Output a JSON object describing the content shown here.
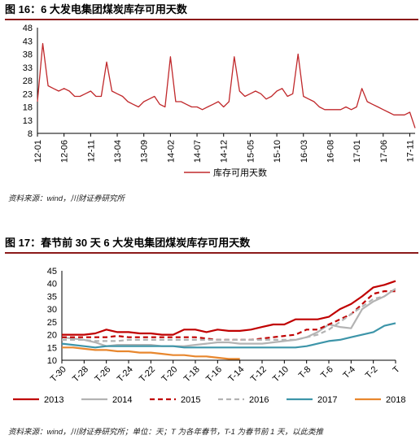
{
  "fig1": {
    "title": "图 16：6 大发电集团煤炭库存可用天数",
    "source": "资料来源：wind，川财证券研究所",
    "chart_data": {
      "type": "line",
      "title": "",
      "xlabel": "",
      "ylabel": "",
      "ylim": [
        8,
        48
      ],
      "yticks": [
        8,
        13,
        18,
        23,
        28,
        33,
        38,
        43,
        48
      ],
      "xticks": [
        "12-01",
        "12-06",
        "12-11",
        "13-04",
        "13-09",
        "14-02",
        "14-07",
        "14-12",
        "15-05",
        "15-10",
        "16-03",
        "16-08",
        "17-01",
        "17-06",
        "17-11"
      ],
      "x_start": "2012-01",
      "x_end": "2017-12",
      "legend": "bottom",
      "series": [
        {
          "name": "库存可用天数",
          "color": "#c0282b",
          "x": [
            "2012-01",
            "2012-02",
            "2012-03",
            "2012-04",
            "2012-05",
            "2012-06",
            "2012-07",
            "2012-08",
            "2012-09",
            "2012-10",
            "2012-11",
            "2012-12",
            "2013-01",
            "2013-02",
            "2013-03",
            "2013-04",
            "2013-05",
            "2013-06",
            "2013-07",
            "2013-08",
            "2013-09",
            "2013-10",
            "2013-11",
            "2013-12",
            "2014-01",
            "2014-02",
            "2014-03",
            "2014-04",
            "2014-05",
            "2014-06",
            "2014-07",
            "2014-08",
            "2014-09",
            "2014-10",
            "2014-11",
            "2014-12",
            "2015-01",
            "2015-02",
            "2015-03",
            "2015-04",
            "2015-05",
            "2015-06",
            "2015-07",
            "2015-08",
            "2015-09",
            "2015-10",
            "2015-11",
            "2015-12",
            "2016-01",
            "2016-02",
            "2016-03",
            "2016-04",
            "2016-05",
            "2016-06",
            "2016-07",
            "2016-08",
            "2016-09",
            "2016-10",
            "2016-11",
            "2016-12",
            "2017-01",
            "2017-02",
            "2017-03",
            "2017-04",
            "2017-05",
            "2017-06",
            "2017-07",
            "2017-08",
            "2017-09",
            "2017-10",
            "2017-11",
            "2017-12"
          ],
          "values": [
            20,
            42,
            26,
            25,
            24,
            25,
            24,
            22,
            22,
            23,
            24,
            22,
            22,
            35,
            24,
            23,
            22,
            20,
            19,
            18,
            20,
            21,
            22,
            19,
            18,
            37,
            20,
            20,
            19,
            18,
            18,
            17,
            18,
            19,
            20,
            18,
            20,
            37,
            24,
            22,
            23,
            24,
            23,
            21,
            22,
            24,
            25,
            22,
            23,
            38,
            22,
            21,
            20,
            18,
            17,
            17,
            17,
            17,
            18,
            17,
            18,
            25,
            20,
            19,
            18,
            17,
            16,
            15,
            15,
            15,
            16,
            10
          ]
        }
      ]
    }
  },
  "fig2": {
    "title": "图 17：春节前 30 天 6 大发电集团煤炭库存可用天数",
    "source": "资料来源：wind，川财证券研究所；单位：天；T 为各年春节，T-1 为春节前 1 天，以此类推",
    "chart_data": {
      "type": "line",
      "title": "",
      "xlabel": "",
      "ylabel": "",
      "ylim": [
        10,
        45
      ],
      "yticks": [
        10,
        15,
        20,
        25,
        30,
        35,
        40,
        45
      ],
      "categories": [
        "T-30",
        "T-29",
        "T-28",
        "T-27",
        "T-26",
        "T-25",
        "T-24",
        "T-23",
        "T-22",
        "T-21",
        "T-20",
        "T-19",
        "T-18",
        "T-17",
        "T-16",
        "T-15",
        "T-14",
        "T-13",
        "T-12",
        "T-11",
        "T-10",
        "T-9",
        "T-8",
        "T-7",
        "T-6",
        "T-5",
        "T-4",
        "T-3",
        "T-2",
        "T-1",
        "T"
      ],
      "tick_labels": [
        "T-30",
        "T-28",
        "T-26",
        "T-24",
        "T-22",
        "T-20",
        "T-18",
        "T-16",
        "T-14",
        "T-12",
        "T-10",
        "T-8",
        "T-6",
        "T-4",
        "T-2",
        "T"
      ],
      "legend": "bottom",
      "series": [
        {
          "name": "2013",
          "color": "#c00000",
          "dash": "solid",
          "values": [
            20,
            20,
            20,
            20.5,
            22,
            21,
            21,
            20.5,
            20.5,
            20,
            20,
            22,
            22,
            21,
            22,
            21.5,
            21.5,
            22,
            23,
            24,
            24,
            26,
            26,
            26,
            27,
            30,
            32,
            35,
            38.5,
            39.5,
            41
          ]
        },
        {
          "name": "2014",
          "color": "#b3b3b3",
          "dash": "solid",
          "values": [
            19,
            18.5,
            18,
            17,
            15.5,
            16,
            16,
            16,
            16,
            15.5,
            15.5,
            15.5,
            16,
            16.5,
            17,
            17,
            16.5,
            16.5,
            16.5,
            17,
            17.5,
            18,
            19,
            21,
            24,
            23,
            22.5,
            30,
            33,
            35,
            38
          ]
        },
        {
          "name": "2015",
          "color": "#c00000",
          "dash": "dashed",
          "values": [
            19,
            19,
            19,
            19,
            19,
            19.5,
            19,
            19,
            19,
            19,
            19,
            19,
            19,
            18.5,
            18,
            18,
            18,
            18,
            18.5,
            19,
            19.5,
            20,
            22,
            22,
            24,
            26,
            28,
            32,
            36,
            37,
            37
          ]
        },
        {
          "name": "2016",
          "color": "#b3b3b3",
          "dash": "dashed",
          "values": [
            18,
            18,
            18,
            17.5,
            17.5,
            17.5,
            18,
            18,
            18,
            18,
            18,
            18,
            18,
            18,
            18,
            18,
            18,
            18,
            18,
            18,
            18,
            18,
            19,
            20,
            22,
            25,
            28,
            31,
            34,
            35,
            38
          ]
        },
        {
          "name": "2017",
          "color": "#3d95a9",
          "dash": "solid",
          "values": [
            16.5,
            16,
            15.5,
            15,
            15.5,
            15.5,
            15.5,
            15.5,
            15.5,
            15.5,
            15.5,
            15,
            15,
            15,
            15,
            15,
            15,
            15,
            15,
            15,
            15,
            15,
            15.5,
            16.5,
            17.5,
            18,
            19,
            20,
            21,
            23.5,
            24.5
          ]
        },
        {
          "name": "2018",
          "color": "#e8872e",
          "dash": "solid",
          "values": [
            15,
            15,
            14.5,
            14,
            14,
            13.5,
            13.5,
            13,
            13,
            12.5,
            12,
            12,
            11.5,
            11.5,
            11,
            10.5,
            10.5,
            null,
            null,
            null,
            null,
            null,
            null,
            null,
            null,
            null,
            null,
            null,
            null,
            null,
            null
          ]
        }
      ]
    }
  }
}
